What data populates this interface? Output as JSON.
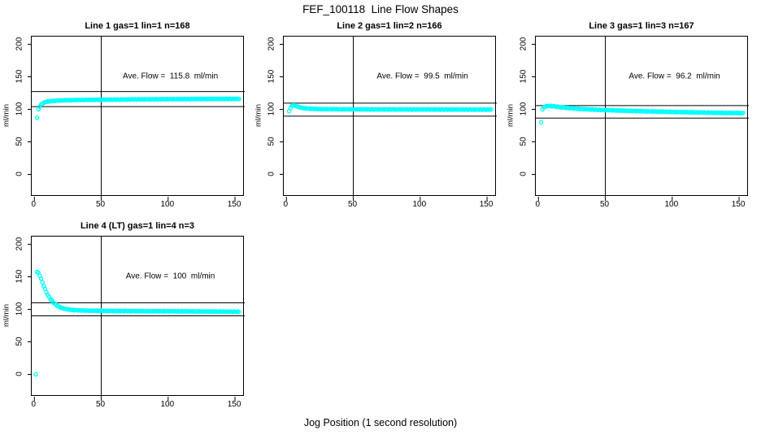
{
  "title": "FEF_100118  Line Flow Shapes",
  "xlabel": "Jog Position (1 second resolution)",
  "palette": {
    "point_color": "#00FFFF",
    "axis_color": "#000000",
    "background": "#FFFFFF"
  },
  "chart_data": {
    "type": "scatter",
    "marker": "open-circle",
    "grid": false,
    "x_domain": [
      -2,
      156
    ],
    "y_domain": [
      -34.4,
      211.9
    ],
    "x_ticks": [
      0,
      50,
      100,
      150
    ],
    "y_ticks": [
      0,
      50,
      100,
      150,
      200
    ],
    "ylabel": "ml/min",
    "vline_x": 50,
    "panels": [
      {
        "title": "Line 1 gas=1 lin=1 n=168",
        "annotation": "Ave. Flow =  115.8  ml/min",
        "avg_flow": 115.8,
        "n": 168,
        "hlines": [
          127.4,
          104.2
        ],
        "outliers": [
          [
            2,
            87
          ],
          [
            3,
            100
          ]
        ],
        "band": [
          [
            4,
            104
          ],
          [
            5,
            107
          ],
          [
            6,
            109
          ],
          [
            8,
            111
          ],
          [
            10,
            112
          ],
          [
            14,
            113
          ],
          [
            20,
            113.8
          ],
          [
            30,
            114.3
          ],
          [
            50,
            114.8
          ],
          [
            80,
            115.4
          ],
          [
            110,
            115.8
          ],
          [
            130,
            116
          ],
          [
            153,
            116.2
          ]
        ]
      },
      {
        "title": "Line 2 gas=1 lin=2 n=166",
        "annotation": "Ave. Flow =  99.5  ml/min",
        "avg_flow": 99.5,
        "n": 166,
        "hlines": [
          109.5,
          89.6
        ],
        "outliers": [
          [
            2,
            97
          ]
        ],
        "band": [
          [
            3,
            102
          ],
          [
            4,
            105.5
          ],
          [
            5,
            106.5
          ],
          [
            6,
            106
          ],
          [
            8,
            104.5
          ],
          [
            10,
            103
          ],
          [
            13,
            101.8
          ],
          [
            17,
            101
          ],
          [
            25,
            100.4
          ],
          [
            40,
            100.1
          ],
          [
            70,
            99.9
          ],
          [
            110,
            99.8
          ],
          [
            153,
            99.6
          ]
        ]
      },
      {
        "title": "Line 3 gas=1 lin=3 n=167",
        "annotation": "Ave. Flow =  96.2  ml/min",
        "avg_flow": 96.2,
        "n": 167,
        "hlines": [
          105.8,
          86.6
        ],
        "outliers": [
          [
            2,
            80
          ]
        ],
        "band": [
          [
            3,
            100
          ],
          [
            4,
            103
          ],
          [
            5,
            104.5
          ],
          [
            7,
            105.3
          ],
          [
            10,
            105
          ],
          [
            14,
            104
          ],
          [
            20,
            102.5
          ],
          [
            30,
            100.8
          ],
          [
            45,
            99.3
          ],
          [
            60,
            98.2
          ],
          [
            80,
            97
          ],
          [
            100,
            96
          ],
          [
            120,
            95.2
          ],
          [
            140,
            94.5
          ],
          [
            153,
            94.2
          ]
        ]
      },
      {
        "title": "Line 4 (LT) gas=1 lin=4 n=3",
        "annotation": "Ave. Flow =  100  ml/min",
        "avg_flow": 100,
        "n": 3,
        "hlines": [
          110,
          90
        ],
        "outliers": [
          [
            1,
            0
          ]
        ],
        "band": [
          [
            2,
            157.5
          ],
          [
            3,
            156
          ],
          [
            4,
            152
          ],
          [
            5,
            147
          ],
          [
            6,
            141.5
          ],
          [
            7,
            136
          ],
          [
            8,
            131
          ],
          [
            9,
            126.5
          ],
          [
            10,
            122.5
          ],
          [
            11,
            119
          ],
          [
            12,
            116
          ],
          [
            13,
            113.5
          ],
          [
            14,
            111
          ],
          [
            15,
            109
          ],
          [
            16,
            107.3
          ],
          [
            17,
            105.8
          ],
          [
            18,
            104.5
          ],
          [
            20,
            102.5
          ],
          [
            22,
            101.2
          ],
          [
            24,
            100.3
          ],
          [
            26,
            99.7
          ],
          [
            28,
            99.2
          ],
          [
            30,
            98.8
          ],
          [
            35,
            98.3
          ],
          [
            40,
            98
          ],
          [
            50,
            97.7
          ],
          [
            60,
            97.5
          ],
          [
            80,
            97.2
          ],
          [
            100,
            97
          ],
          [
            120,
            96.8
          ],
          [
            140,
            96.5
          ],
          [
            153,
            96.3
          ]
        ]
      }
    ]
  }
}
